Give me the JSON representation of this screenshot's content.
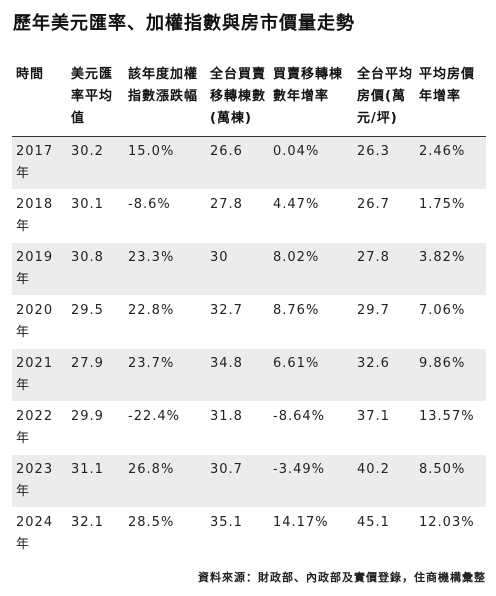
{
  "title": "歷年美元匯率、加權指數與房市價量走勢",
  "headers": [
    "時間",
    "美元匯率平均值",
    "該年度加權指數漲跌幅",
    "全台買賣移轉棟數(萬棟)",
    "買賣移轉棟數年增率",
    "全台平均房價(萬元/坪)",
    "平均房價年增率"
  ],
  "rows": [
    {
      "year": "2017年",
      "usd_rate": "30.2",
      "taiex_change": "15.0%",
      "transfers": "26.6",
      "transfer_growth": "0.04%",
      "avg_price": "26.3",
      "price_growth": "2.46%"
    },
    {
      "year": "2018年",
      "usd_rate": "30.1",
      "taiex_change": "-8.6%",
      "transfers": "27.8",
      "transfer_growth": "4.47%",
      "avg_price": "26.7",
      "price_growth": "1.75%"
    },
    {
      "year": "2019年",
      "usd_rate": "30.8",
      "taiex_change": "23.3%",
      "transfers": "30",
      "transfer_growth": "8.02%",
      "avg_price": "27.8",
      "price_growth": "3.82%"
    },
    {
      "year": "2020年",
      "usd_rate": "29.5",
      "taiex_change": "22.8%",
      "transfers": "32.7",
      "transfer_growth": "8.76%",
      "avg_price": "29.7",
      "price_growth": "7.06%"
    },
    {
      "year": "2021年",
      "usd_rate": "27.9",
      "taiex_change": "23.7%",
      "transfers": "34.8",
      "transfer_growth": "6.61%",
      "avg_price": "32.6",
      "price_growth": "9.86%"
    },
    {
      "year": "2022年",
      "usd_rate": "29.9",
      "taiex_change": "-22.4%",
      "transfers": "31.8",
      "transfer_growth": "-8.64%",
      "avg_price": "37.1",
      "price_growth": "13.57%"
    },
    {
      "year": "2023年",
      "usd_rate": "31.1",
      "taiex_change": "26.8%",
      "transfers": "30.7",
      "transfer_growth": "-3.49%",
      "avg_price": "40.2",
      "price_growth": "8.50%"
    },
    {
      "year": "2024年",
      "usd_rate": "32.1",
      "taiex_change": "28.5%",
      "transfers": "35.1",
      "transfer_growth": "14.17%",
      "avg_price": "45.1",
      "price_growth": "12.03%"
    }
  ],
  "source": "資料來源：財政部、內政部及實價登錄，住商機構彙整",
  "colors": {
    "band": "#ececec",
    "text": "#222222",
    "rule": "#333333"
  }
}
